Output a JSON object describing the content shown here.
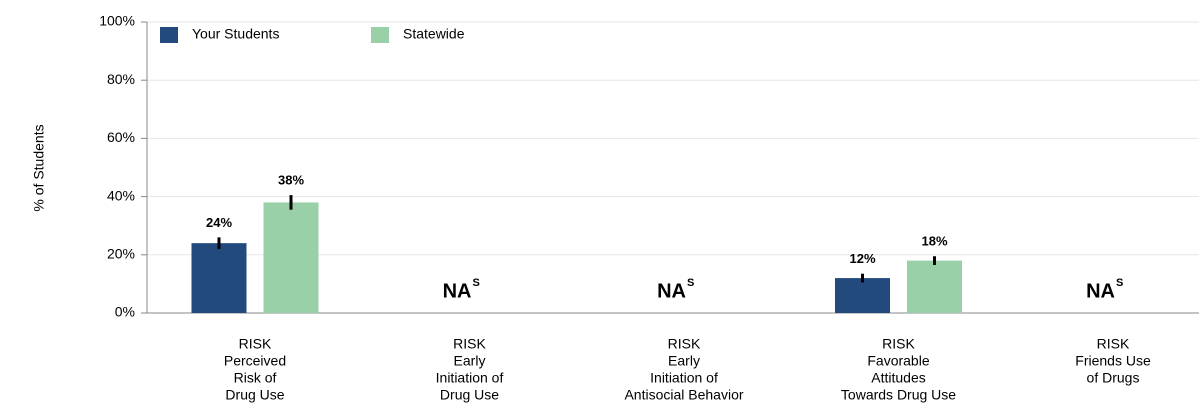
{
  "chart_data": {
    "type": "bar",
    "y_label": "% of Students",
    "categories": [
      [
        "RISK",
        "Perceived",
        "Risk of",
        "Drug Use"
      ],
      [
        "RISK",
        "Early",
        "Initiation of",
        "Drug Use"
      ],
      [
        "RISK",
        "Early",
        "Initiation of",
        "Antisocial Behavior"
      ],
      [
        "RISK",
        "Favorable",
        "Attitudes",
        "Towards Drug Use"
      ],
      [
        "RISK",
        "Friends Use",
        "of Drugs"
      ]
    ],
    "series": [
      {
        "name": "Your Students",
        "color": "#234a7d",
        "values": [
          24,
          null,
          null,
          12,
          null
        ],
        "errors": [
          2,
          null,
          null,
          1.5,
          null
        ],
        "value_labels": [
          "24%",
          null,
          null,
          "12%",
          null
        ]
      },
      {
        "name": "Statewide",
        "color": "#99d0a8",
        "values": [
          38,
          null,
          null,
          18,
          null
        ],
        "errors": [
          2.5,
          null,
          null,
          1.5,
          null
        ],
        "value_labels": [
          "38%",
          null,
          null,
          "18%",
          null
        ]
      }
    ],
    "na_label": {
      "text": "NA",
      "superscript": "S"
    },
    "ylim": [
      0,
      100
    ],
    "yticks": [
      {
        "value": 0,
        "label": "0%"
      },
      {
        "value": 20,
        "label": "20%"
      },
      {
        "value": 40,
        "label": "40%"
      },
      {
        "value": 60,
        "label": "60%"
      },
      {
        "value": 80,
        "label": "80%"
      },
      {
        "value": 100,
        "label": "100%"
      }
    ],
    "grid": true
  }
}
